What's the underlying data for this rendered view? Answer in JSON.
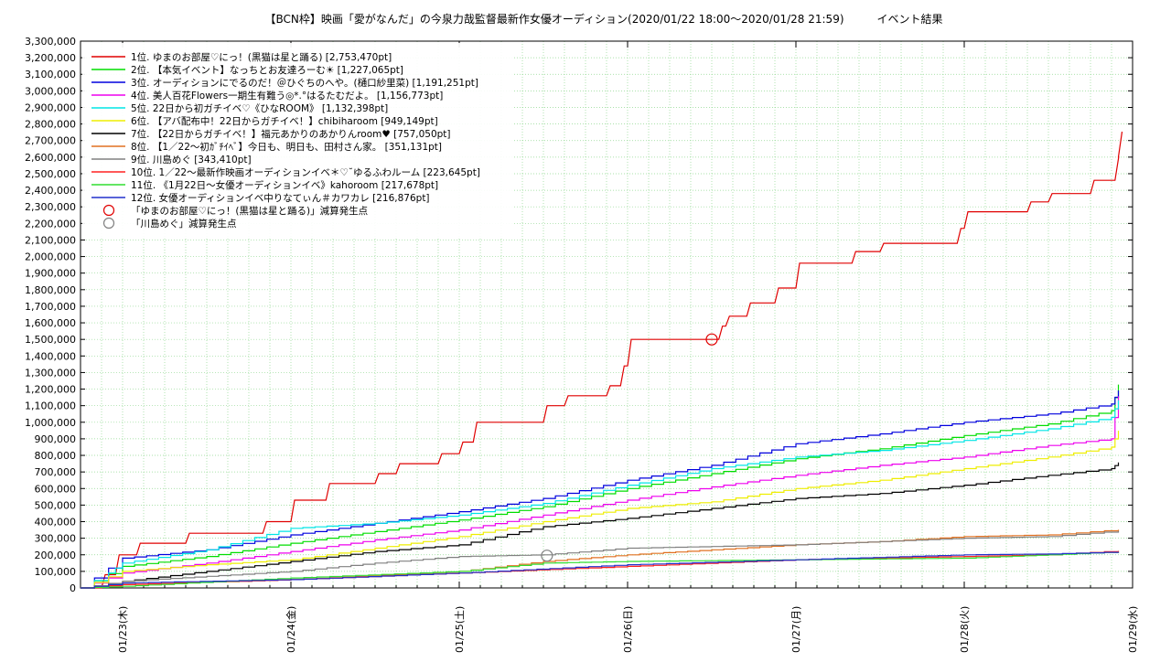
{
  "chart_data": {
    "type": "line",
    "title": "【BCN枠】映画「愛がなんだ」の今泉力哉監督最新作女優オーディション(2020/01/22 18:00〜2020/01/28 21:59)　　　イベント結果",
    "xlabel": "",
    "ylabel": "",
    "ylim": [
      0,
      3300000
    ],
    "x_range": [
      "2020-01-22 18:00",
      "2020-01-28 21:59"
    ],
    "x_tick_labels": [
      {
        "x": "2020-01-23",
        "label": "01/23(木)"
      },
      {
        "x": "2020-01-24",
        "label": "01/24(金)"
      },
      {
        "x": "2020-01-25",
        "label": "01/25(土)"
      },
      {
        "x": "2020-01-26",
        "label": "01/26(日)"
      },
      {
        "x": "2020-01-27",
        "label": "01/27(月)"
      },
      {
        "x": "2020-01-28",
        "label": "01/28(火)"
      },
      {
        "x": "2020-01-29",
        "label": "01/29(水)"
      }
    ],
    "y_tick_labels": [
      "0",
      "100,000",
      "200,000",
      "300,000",
      "400,000",
      "500,000",
      "600,000",
      "700,000",
      "800,000",
      "900,000",
      "1,000,000",
      "1,100,000",
      "1,200,000",
      "1,300,000",
      "1,400,000",
      "1,500,000",
      "1,600,000",
      "1,700,000",
      "1,800,000",
      "1,900,000",
      "2,000,000",
      "2,100,000",
      "2,200,000",
      "2,300,000",
      "2,400,000",
      "2,500,000",
      "2,600,000",
      "2,700,000",
      "2,800,000",
      "2,900,000",
      "3,000,000",
      "3,100,000",
      "3,200,000",
      "3,300,000"
    ],
    "grid": true,
    "legend_position": "top-left",
    "series": [
      {
        "name": " 1位. ゆまのお部屋♡にっ！(黒猫は星と踊る) [2,753,470pt]",
        "color": "#e00000",
        "shape": "step",
        "points": [
          [
            "2020-01-22 18:00",
            0
          ],
          [
            "2020-01-22 21:00",
            80000
          ],
          [
            "2020-01-22 23:00",
            200000
          ],
          [
            "2020-01-23 02:00",
            270000
          ],
          [
            "2020-01-23 09:00",
            330000
          ],
          [
            "2020-01-23 20:00",
            400000
          ],
          [
            "2020-01-24 00:00",
            530000
          ],
          [
            "2020-01-24 05:00",
            630000
          ],
          [
            "2020-01-24 12:00",
            690000
          ],
          [
            "2020-01-24 15:00",
            750000
          ],
          [
            "2020-01-24 21:00",
            810000
          ],
          [
            "2020-01-25 00:00",
            880000
          ],
          [
            "2020-01-25 02:00",
            1000000
          ],
          [
            "2020-01-25 12:00",
            1100000
          ],
          [
            "2020-01-25 15:00",
            1160000
          ],
          [
            "2020-01-25 21:00",
            1220000
          ],
          [
            "2020-01-25 23:00",
            1340000
          ],
          [
            "2020-01-26 00:00",
            1500000
          ],
          [
            "2020-01-26 12:00",
            1500000
          ],
          [
            "2020-01-26 13:00",
            1580000
          ],
          [
            "2020-01-26 14:00",
            1640000
          ],
          [
            "2020-01-26 17:00",
            1720000
          ],
          [
            "2020-01-26 21:00",
            1810000
          ],
          [
            "2020-01-27 00:00",
            1960000
          ],
          [
            "2020-01-27 08:00",
            2030000
          ],
          [
            "2020-01-27 12:00",
            2080000
          ],
          [
            "2020-01-27 23:00",
            2170000
          ],
          [
            "2020-01-28 00:00",
            2270000
          ],
          [
            "2020-01-28 09:00",
            2330000
          ],
          [
            "2020-01-28 12:00",
            2380000
          ],
          [
            "2020-01-28 18:00",
            2460000
          ],
          [
            "2020-01-28 21:30",
            2600000
          ],
          [
            "2020-01-28 21:59",
            2753470
          ]
        ]
      },
      {
        "name": "2位. 【本気イベント】なっちとお友達ろーむ☀ [1,227,065pt]",
        "color": "#00dd00",
        "shape": "smooth",
        "points": [
          [
            "2020-01-22 18:00",
            0
          ],
          [
            "2020-01-23 00:00",
            130000
          ],
          [
            "2020-01-23 12:00",
            190000
          ],
          [
            "2020-01-24 00:00",
            270000
          ],
          [
            "2020-01-24 12:00",
            340000
          ],
          [
            "2020-01-25 00:00",
            410000
          ],
          [
            "2020-01-25 12:00",
            490000
          ],
          [
            "2020-01-26 00:00",
            600000
          ],
          [
            "2020-01-26 12:00",
            690000
          ],
          [
            "2020-01-27 00:00",
            780000
          ],
          [
            "2020-01-27 12:00",
            840000
          ],
          [
            "2020-01-28 00:00",
            920000
          ],
          [
            "2020-01-28 12:00",
            990000
          ],
          [
            "2020-01-28 21:00",
            1070000
          ],
          [
            "2020-01-28 21:59",
            1227065
          ]
        ]
      },
      {
        "name": "3位. オーディションにでるのだ！＠ひぐちのへや。(樋口紗里菜) [1,191,251pt]",
        "color": "#0000dd",
        "shape": "smooth",
        "points": [
          [
            "2020-01-22 18:00",
            0
          ],
          [
            "2020-01-23 00:00",
            180000
          ],
          [
            "2020-01-23 12:00",
            230000
          ],
          [
            "2020-01-24 00:00",
            320000
          ],
          [
            "2020-01-24 12:00",
            390000
          ],
          [
            "2020-01-25 00:00",
            460000
          ],
          [
            "2020-01-25 12:00",
            540000
          ],
          [
            "2020-01-26 00:00",
            650000
          ],
          [
            "2020-01-26 12:00",
            740000
          ],
          [
            "2020-01-27 00:00",
            870000
          ],
          [
            "2020-01-27 12:00",
            930000
          ],
          [
            "2020-01-28 00:00",
            1000000
          ],
          [
            "2020-01-28 12:00",
            1050000
          ],
          [
            "2020-01-28 21:00",
            1110000
          ],
          [
            "2020-01-28 21:59",
            1191251
          ]
        ]
      },
      {
        "name": "4位. 美人百花Flowers一期生有難う◎*.°はるたむだよ。 [1,156,773pt]",
        "color": "#ee00ee",
        "shape": "smooth",
        "points": [
          [
            "2020-01-22 18:00",
            0
          ],
          [
            "2020-01-23 00:00",
            90000
          ],
          [
            "2020-01-23 12:00",
            150000
          ],
          [
            "2020-01-24 00:00",
            220000
          ],
          [
            "2020-01-24 12:00",
            290000
          ],
          [
            "2020-01-25 00:00",
            350000
          ],
          [
            "2020-01-25 12:00",
            440000
          ],
          [
            "2020-01-26 00:00",
            530000
          ],
          [
            "2020-01-26 12:00",
            610000
          ],
          [
            "2020-01-27 00:00",
            680000
          ],
          [
            "2020-01-27 12:00",
            740000
          ],
          [
            "2020-01-28 00:00",
            790000
          ],
          [
            "2020-01-28 12:00",
            860000
          ],
          [
            "2020-01-28 21:00",
            900000
          ],
          [
            "2020-01-28 21:59",
            1156773
          ]
        ]
      },
      {
        "name": "5位. 22日から初ガチイベ♡《ひなROOM》 [1,132,398pt]",
        "color": "#00e5e5",
        "shape": "smooth",
        "points": [
          [
            "2020-01-22 18:00",
            0
          ],
          [
            "2020-01-22 22:00",
            90000
          ],
          [
            "2020-01-23 00:00",
            150000
          ],
          [
            "2020-01-23 12:00",
            230000
          ],
          [
            "2020-01-24 00:00",
            360000
          ],
          [
            "2020-01-24 12:00",
            390000
          ],
          [
            "2020-01-25 00:00",
            440000
          ],
          [
            "2020-01-25 12:00",
            510000
          ],
          [
            "2020-01-26 00:00",
            620000
          ],
          [
            "2020-01-26 12:00",
            720000
          ],
          [
            "2020-01-27 00:00",
            790000
          ],
          [
            "2020-01-27 12:00",
            830000
          ],
          [
            "2020-01-28 00:00",
            890000
          ],
          [
            "2020-01-28 12:00",
            960000
          ],
          [
            "2020-01-28 21:00",
            1030000
          ],
          [
            "2020-01-28 21:59",
            1132398
          ]
        ]
      },
      {
        "name": "6位. 【アバ配布中！22日からガチイベ！】chibiharoom [949,149pt]",
        "color": "#eeee00",
        "shape": "smooth",
        "points": [
          [
            "2020-01-22 18:00",
            0
          ],
          [
            "2020-01-23 00:00",
            100000
          ],
          [
            "2020-01-23 12:00",
            140000
          ],
          [
            "2020-01-24 00:00",
            170000
          ],
          [
            "2020-01-24 12:00",
            240000
          ],
          [
            "2020-01-25 00:00",
            310000
          ],
          [
            "2020-01-25 12:00",
            400000
          ],
          [
            "2020-01-26 00:00",
            480000
          ],
          [
            "2020-01-26 12:00",
            520000
          ],
          [
            "2020-01-27 00:00",
            600000
          ],
          [
            "2020-01-27 12:00",
            650000
          ],
          [
            "2020-01-28 00:00",
            720000
          ],
          [
            "2020-01-28 12:00",
            790000
          ],
          [
            "2020-01-28 21:00",
            850000
          ],
          [
            "2020-01-28 21:59",
            949149
          ]
        ]
      },
      {
        "name": "7位. 【22日からガチイベ！】福元あかりのあかりんroom♥ [757,050pt]",
        "color": "#000000",
        "shape": "smooth",
        "points": [
          [
            "2020-01-22 18:00",
            0
          ],
          [
            "2020-01-23 00:00",
            40000
          ],
          [
            "2020-01-23 12:00",
            100000
          ],
          [
            "2020-01-24 00:00",
            160000
          ],
          [
            "2020-01-24 12:00",
            220000
          ],
          [
            "2020-01-25 00:00",
            260000
          ],
          [
            "2020-01-25 12:00",
            370000
          ],
          [
            "2020-01-26 00:00",
            420000
          ],
          [
            "2020-01-26 12:00",
            480000
          ],
          [
            "2020-01-27 00:00",
            540000
          ],
          [
            "2020-01-27 12:00",
            570000
          ],
          [
            "2020-01-28 00:00",
            620000
          ],
          [
            "2020-01-28 12:00",
            680000
          ],
          [
            "2020-01-28 21:00",
            720000
          ],
          [
            "2020-01-28 21:59",
            757050
          ]
        ]
      },
      {
        "name": "8位. 【1／22〜初ｶﾞﾁｲﾍﾞ】今日も、明日も、田村さん家。 [351,131pt]",
        "color": "#e07020",
        "shape": "smooth",
        "points": [
          [
            "2020-01-22 18:00",
            0
          ],
          [
            "2020-01-23 00:00",
            20000
          ],
          [
            "2020-01-24 00:00",
            50000
          ],
          [
            "2020-01-25 00:00",
            100000
          ],
          [
            "2020-01-25 12:00",
            160000
          ],
          [
            "2020-01-26 00:00",
            200000
          ],
          [
            "2020-01-26 12:00",
            230000
          ],
          [
            "2020-01-27 00:00",
            260000
          ],
          [
            "2020-01-27 12:00",
            280000
          ],
          [
            "2020-01-28 00:00",
            310000
          ],
          [
            "2020-01-28 12:00",
            320000
          ],
          [
            "2020-01-28 21:59",
            351131
          ]
        ]
      },
      {
        "name": " 9位. 川島めぐ [343,410pt]",
        "color": "#808080",
        "shape": "smooth",
        "points": [
          [
            "2020-01-22 18:00",
            0
          ],
          [
            "2020-01-23 00:00",
            40000
          ],
          [
            "2020-01-23 12:00",
            70000
          ],
          [
            "2020-01-24 00:00",
            100000
          ],
          [
            "2020-01-24 12:00",
            150000
          ],
          [
            "2020-01-25 00:00",
            190000
          ],
          [
            "2020-01-25 12:00",
            200000
          ],
          [
            "2020-01-26 00:00",
            240000
          ],
          [
            "2020-01-26 12:00",
            250000
          ],
          [
            "2020-01-27 00:00",
            260000
          ],
          [
            "2020-01-27 12:00",
            280000
          ],
          [
            "2020-01-28 00:00",
            300000
          ],
          [
            "2020-01-28 12:00",
            310000
          ],
          [
            "2020-01-28 21:59",
            343410
          ]
        ]
      },
      {
        "name": "10位. 1／22〜最新作映画オーディションイベ＊♡˘ゆるふわルーム [223,645pt]",
        "color": "#ff2020",
        "shape": "smooth",
        "points": [
          [
            "2020-01-22 18:00",
            0
          ],
          [
            "2020-01-23 00:00",
            20000
          ],
          [
            "2020-01-24 00:00",
            50000
          ],
          [
            "2020-01-25 00:00",
            90000
          ],
          [
            "2020-01-26 00:00",
            130000
          ],
          [
            "2020-01-27 00:00",
            170000
          ],
          [
            "2020-01-28 00:00",
            190000
          ],
          [
            "2020-01-28 12:00",
            200000
          ],
          [
            "2020-01-28 21:59",
            223645
          ]
        ]
      },
      {
        "name": "11位. 《1月22日〜女優オーディションイベ》kahoroom [217,678pt]",
        "color": "#30dd30",
        "shape": "smooth",
        "points": [
          [
            "2020-01-22 18:00",
            0
          ],
          [
            "2020-01-23 00:00",
            10000
          ],
          [
            "2020-01-24 00:00",
            60000
          ],
          [
            "2020-01-25 00:00",
            100000
          ],
          [
            "2020-01-25 12:00",
            150000
          ],
          [
            "2020-01-26 00:00",
            160000
          ],
          [
            "2020-01-27 00:00",
            170000
          ],
          [
            "2020-01-28 00:00",
            180000
          ],
          [
            "2020-01-28 12:00",
            200000
          ],
          [
            "2020-01-28 21:59",
            217678
          ]
        ]
      },
      {
        "name": "12位. 女優オーディションイベ中りなてぃん＃カワカレ [216,876pt]",
        "color": "#2030cc",
        "shape": "smooth",
        "points": [
          [
            "2020-01-22 18:00",
            0
          ],
          [
            "2020-01-23 00:00",
            30000
          ],
          [
            "2020-01-24 00:00",
            50000
          ],
          [
            "2020-01-25 00:00",
            90000
          ],
          [
            "2020-01-26 00:00",
            140000
          ],
          [
            "2020-01-27 00:00",
            170000
          ],
          [
            "2020-01-28 00:00",
            200000
          ],
          [
            "2020-01-28 12:00",
            205000
          ],
          [
            "2020-01-28 21:59",
            216876
          ]
        ]
      }
    ],
    "markers": [
      {
        "name": "「ゆまのお部屋♡にっ！(黒猫は星と踊る)」減算発生点",
        "color": "#e00000",
        "x": "2020-01-26 12:00",
        "y": 1500000
      },
      {
        "name": "「川島めぐ」減算発生点",
        "color": "#808080",
        "x": "2020-01-25 12:30",
        "y": 195000
      }
    ]
  }
}
